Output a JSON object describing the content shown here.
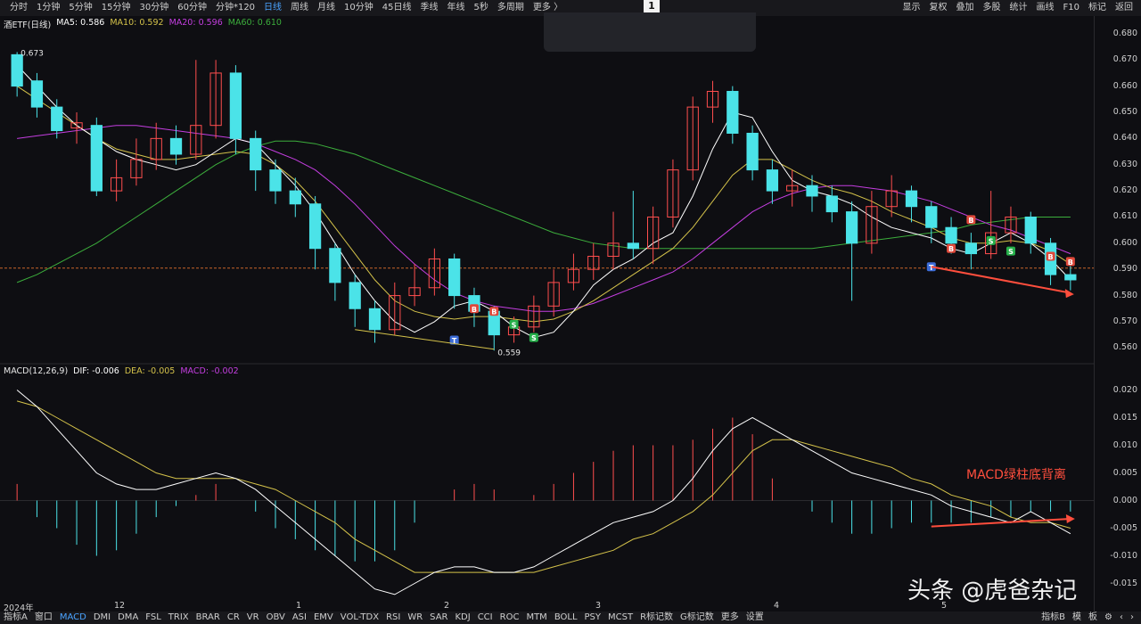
{
  "toolbar": {
    "tabs": [
      "分时",
      "1分钟",
      "5分钟",
      "15分钟",
      "30分钟",
      "60分钟",
      "分钟*120",
      "日线",
      "周线",
      "月线",
      "10分钟",
      "45日线",
      "季线",
      "年线",
      "5秒",
      "多周期",
      "更多 〉"
    ],
    "active_tab": "日线",
    "tools": [
      "显示",
      "复权",
      "叠加",
      "多股",
      "统计",
      "画线",
      "F10",
      "标记",
      "返回"
    ],
    "page_badge": "1"
  },
  "price_legend": {
    "name": "酒ETF(日线)",
    "ma5": "MA5: 0.586",
    "ma10": "MA10: 0.592",
    "ma20": "MA20: 0.596",
    "ma60": "MA60: 0.610"
  },
  "macd_legend": {
    "name": "MACD(12,26,9)",
    "dif": "DIF: -0.006",
    "dea": "DEA: -0.005",
    "macd": "MACD: -0.002"
  },
  "price_axis": [
    "0.680",
    "0.670",
    "0.660",
    "0.650",
    "0.640",
    "0.630",
    "0.620",
    "0.610",
    "0.600",
    "0.590",
    "0.580",
    "0.570",
    "0.560"
  ],
  "macd_axis": [
    "0.020",
    "0.015",
    "0.010",
    "0.005",
    "0.000",
    "-0.005",
    "-0.010",
    "-0.015"
  ],
  "x_labels": [
    "2024年",
    "12",
    "1",
    "2",
    "3",
    "4",
    "5"
  ],
  "price_annotations": {
    "high": "0.673",
    "low": "0.559"
  },
  "annotation_text": "MACD绿柱底背离",
  "watermark": "头条 @虎爸杂记",
  "bottom_tabs": [
    "指标A",
    "窗口",
    "MACD",
    "DMI",
    "DMA",
    "FSL",
    "TRIX",
    "BRAR",
    "CR",
    "VR",
    "OBV",
    "ASI",
    "EMV",
    "VOL-TDX",
    "RSI",
    "WR",
    "SAR",
    "KDJ",
    "CCI",
    "ROC",
    "MTM",
    "BOLL",
    "PSY",
    "MCST",
    "R标记数",
    "G标记数",
    "更多",
    "设置"
  ],
  "bottom_active": "MACD",
  "bottom_right": [
    "指标B",
    "模",
    "板",
    "⚙",
    "‹",
    "›"
  ],
  "marker_labels": {
    "buy": "B",
    "sell": "S",
    "t": "T"
  },
  "colors": {
    "up": "#ff4e4e",
    "down": "#4be3e8",
    "ma5": "#ffffff",
    "ma10": "#d4c24a",
    "ma20": "#c43ee0",
    "ma60": "#3cae3c",
    "dif": "#ffffff",
    "dea": "#d4c24a",
    "active": "#4aa3ff"
  },
  "chart_data": {
    "type": "candlestick",
    "ylim": [
      0.555,
      0.682
    ],
    "ma5": [
      0.668,
      0.66,
      0.652,
      0.645,
      0.64,
      0.635,
      0.632,
      0.63,
      0.628,
      0.63,
      0.635,
      0.64,
      0.638,
      0.63,
      0.622,
      0.612,
      0.6,
      0.588,
      0.578,
      0.57,
      0.566,
      0.57,
      0.576,
      0.578,
      0.574,
      0.568,
      0.564,
      0.566,
      0.574,
      0.584,
      0.59,
      0.594,
      0.6,
      0.604,
      0.618,
      0.636,
      0.65,
      0.648,
      0.635,
      0.624,
      0.62,
      0.618,
      0.615,
      0.61,
      0.606,
      0.604,
      0.602,
      0.598,
      0.596,
      0.6,
      0.604,
      0.6,
      0.594,
      0.586
    ],
    "ma10": [
      0.66,
      0.655,
      0.65,
      0.645,
      0.64,
      0.636,
      0.634,
      0.632,
      0.632,
      0.633,
      0.634,
      0.635,
      0.634,
      0.63,
      0.624,
      0.616,
      0.606,
      0.596,
      0.586,
      0.578,
      0.574,
      0.572,
      0.571,
      0.572,
      0.572,
      0.571,
      0.57,
      0.571,
      0.574,
      0.578,
      0.583,
      0.588,
      0.593,
      0.598,
      0.606,
      0.616,
      0.626,
      0.632,
      0.632,
      0.628,
      0.624,
      0.621,
      0.619,
      0.616,
      0.612,
      0.609,
      0.606,
      0.602,
      0.6,
      0.6,
      0.601,
      0.6,
      0.597,
      0.592
    ],
    "ma20": [
      0.64,
      0.641,
      0.642,
      0.643,
      0.644,
      0.645,
      0.645,
      0.644,
      0.643,
      0.642,
      0.641,
      0.64,
      0.638,
      0.635,
      0.632,
      0.628,
      0.622,
      0.615,
      0.607,
      0.599,
      0.592,
      0.586,
      0.581,
      0.578,
      0.576,
      0.575,
      0.574,
      0.574,
      0.575,
      0.577,
      0.58,
      0.583,
      0.586,
      0.589,
      0.594,
      0.6,
      0.606,
      0.612,
      0.616,
      0.619,
      0.621,
      0.622,
      0.622,
      0.621,
      0.62,
      0.618,
      0.616,
      0.613,
      0.61,
      0.607,
      0.605,
      0.602,
      0.599,
      0.596
    ],
    "ma60": [
      0.585,
      0.588,
      0.592,
      0.596,
      0.6,
      0.605,
      0.61,
      0.615,
      0.62,
      0.625,
      0.63,
      0.634,
      0.637,
      0.639,
      0.639,
      0.638,
      0.636,
      0.634,
      0.631,
      0.628,
      0.625,
      0.622,
      0.619,
      0.616,
      0.613,
      0.61,
      0.607,
      0.604,
      0.602,
      0.6,
      0.599,
      0.598,
      0.598,
      0.598,
      0.598,
      0.598,
      0.598,
      0.598,
      0.598,
      0.598,
      0.598,
      0.599,
      0.6,
      0.601,
      0.602,
      0.603,
      0.604,
      0.605,
      0.607,
      0.608,
      0.609,
      0.61,
      0.61,
      0.61
    ],
    "candles": [
      [
        0.672,
        0.66,
        0.673,
        0.656
      ],
      [
        0.662,
        0.652,
        0.665,
        0.648
      ],
      [
        0.652,
        0.643,
        0.655,
        0.64
      ],
      [
        0.644,
        0.646,
        0.65,
        0.638
      ],
      [
        0.645,
        0.62,
        0.648,
        0.618
      ],
      [
        0.62,
        0.625,
        0.632,
        0.616
      ],
      [
        0.625,
        0.632,
        0.64,
        0.622
      ],
      [
        0.632,
        0.64,
        0.646,
        0.628
      ],
      [
        0.64,
        0.634,
        0.645,
        0.63
      ],
      [
        0.634,
        0.645,
        0.67,
        0.632
      ],
      [
        0.645,
        0.665,
        0.67,
        0.64
      ],
      [
        0.665,
        0.64,
        0.668,
        0.634
      ],
      [
        0.64,
        0.628,
        0.643,
        0.62
      ],
      [
        0.628,
        0.62,
        0.632,
        0.615
      ],
      [
        0.62,
        0.615,
        0.625,
        0.61
      ],
      [
        0.615,
        0.598,
        0.618,
        0.59
      ],
      [
        0.598,
        0.585,
        0.6,
        0.578
      ],
      [
        0.585,
        0.575,
        0.588,
        0.568
      ],
      [
        0.575,
        0.567,
        0.578,
        0.562
      ],
      [
        0.567,
        0.58,
        0.585,
        0.565
      ],
      [
        0.58,
        0.583,
        0.592,
        0.576
      ],
      [
        0.583,
        0.594,
        0.598,
        0.58
      ],
      [
        0.594,
        0.58,
        0.596,
        0.575
      ],
      [
        0.58,
        0.574,
        0.583,
        0.568
      ],
      [
        0.574,
        0.565,
        0.576,
        0.559
      ],
      [
        0.565,
        0.568,
        0.572,
        0.562
      ],
      [
        0.568,
        0.576,
        0.58,
        0.566
      ],
      [
        0.576,
        0.585,
        0.59,
        0.572
      ],
      [
        0.585,
        0.59,
        0.596,
        0.582
      ],
      [
        0.59,
        0.595,
        0.6,
        0.586
      ],
      [
        0.595,
        0.6,
        0.612,
        0.59
      ],
      [
        0.6,
        0.598,
        0.62,
        0.594
      ],
      [
        0.598,
        0.61,
        0.614,
        0.592
      ],
      [
        0.61,
        0.628,
        0.632,
        0.606
      ],
      [
        0.628,
        0.652,
        0.656,
        0.624
      ],
      [
        0.652,
        0.658,
        0.662,
        0.646
      ],
      [
        0.658,
        0.642,
        0.66,
        0.638
      ],
      [
        0.642,
        0.628,
        0.645,
        0.624
      ],
      [
        0.628,
        0.62,
        0.632,
        0.615
      ],
      [
        0.62,
        0.622,
        0.628,
        0.614
      ],
      [
        0.622,
        0.618,
        0.626,
        0.612
      ],
      [
        0.618,
        0.612,
        0.622,
        0.608
      ],
      [
        0.612,
        0.6,
        0.616,
        0.578
      ],
      [
        0.6,
        0.614,
        0.62,
        0.596
      ],
      [
        0.614,
        0.62,
        0.626,
        0.61
      ],
      [
        0.62,
        0.614,
        0.622,
        0.608
      ],
      [
        0.614,
        0.606,
        0.616,
        0.6
      ],
      [
        0.606,
        0.6,
        0.61,
        0.596
      ],
      [
        0.6,
        0.596,
        0.604,
        0.59
      ],
      [
        0.596,
        0.604,
        0.62,
        0.594
      ],
      [
        0.604,
        0.61,
        0.614,
        0.6
      ],
      [
        0.61,
        0.6,
        0.612,
        0.596
      ],
      [
        0.6,
        0.588,
        0.602,
        0.584
      ],
      [
        0.588,
        0.586,
        0.592,
        0.582
      ]
    ],
    "macd_dif": [
      0.02,
      0.017,
      0.013,
      0.009,
      0.005,
      0.003,
      0.002,
      0.002,
      0.003,
      0.004,
      0.005,
      0.004,
      0.002,
      -0.001,
      -0.004,
      -0.007,
      -0.01,
      -0.013,
      -0.016,
      -0.017,
      -0.015,
      -0.013,
      -0.012,
      -0.012,
      -0.013,
      -0.013,
      -0.012,
      -0.01,
      -0.008,
      -0.006,
      -0.004,
      -0.003,
      -0.002,
      0.0,
      0.004,
      0.009,
      0.013,
      0.015,
      0.013,
      0.011,
      0.009,
      0.007,
      0.005,
      0.004,
      0.003,
      0.002,
      0.001,
      -0.001,
      -0.002,
      -0.003,
      -0.004,
      -0.002,
      -0.004,
      -0.006
    ],
    "macd_dea": [
      0.018,
      0.017,
      0.015,
      0.013,
      0.011,
      0.009,
      0.007,
      0.005,
      0.004,
      0.004,
      0.004,
      0.004,
      0.003,
      0.002,
      0.0,
      -0.002,
      -0.004,
      -0.007,
      -0.009,
      -0.011,
      -0.013,
      -0.013,
      -0.013,
      -0.013,
      -0.013,
      -0.013,
      -0.013,
      -0.012,
      -0.011,
      -0.01,
      -0.009,
      -0.007,
      -0.006,
      -0.004,
      -0.002,
      0.001,
      0.005,
      0.009,
      0.011,
      0.011,
      0.01,
      0.009,
      0.008,
      0.007,
      0.006,
      0.004,
      0.003,
      0.001,
      0.0,
      -0.001,
      -0.003,
      -0.004,
      -0.004,
      -0.005
    ],
    "macd_hist": [
      0.003,
      -0.003,
      -0.005,
      -0.008,
      -0.01,
      -0.009,
      -0.006,
      -0.003,
      -0.001,
      0.001,
      0.003,
      0.0,
      -0.002,
      -0.005,
      -0.007,
      -0.009,
      -0.01,
      -0.011,
      -0.011,
      -0.009,
      -0.004,
      0.0,
      0.002,
      0.003,
      0.002,
      0.0,
      0.001,
      0.003,
      0.005,
      0.007,
      0.009,
      0.01,
      0.01,
      0.01,
      0.011,
      0.013,
      0.015,
      0.012,
      0.004,
      0.0,
      -0.002,
      -0.004,
      -0.006,
      -0.006,
      -0.005,
      -0.004,
      -0.004,
      -0.004,
      -0.004,
      -0.003,
      -0.003,
      -0.002,
      -0.002,
      -0.002
    ]
  }
}
